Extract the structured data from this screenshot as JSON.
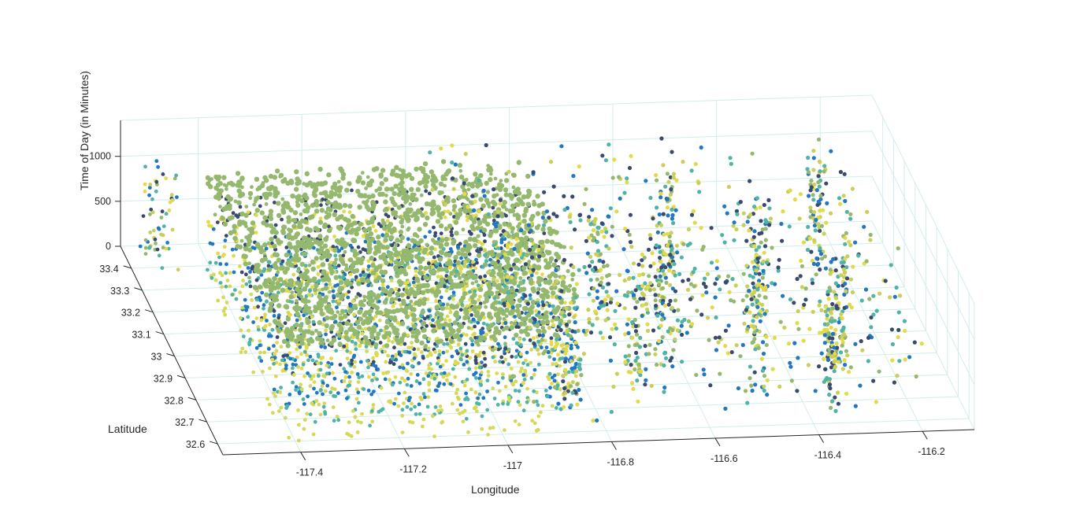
{
  "chart_data": {
    "type": "scatter",
    "dimensions": "3d",
    "xlabel": "Longitude",
    "ylabel": "Latitude",
    "zlabel": "Time of Day (in Minutes)",
    "xticks": [
      "-117.4",
      "-117.2",
      "-117",
      "-116.8",
      "-116.6",
      "-116.4",
      "-116.2"
    ],
    "yticks": [
      "32.6",
      "32.7",
      "32.8",
      "32.9",
      "33",
      "33.1",
      "33.2",
      "33.3",
      "33.4"
    ],
    "zticks": [
      "0",
      "500",
      "1000"
    ],
    "xlim": [
      -117.55,
      -116.1
    ],
    "ylim": [
      32.55,
      33.5
    ],
    "zlim": [
      0,
      1400
    ],
    "grid": true,
    "colors": {
      "band_colors": [
        "#d6d85a",
        "#4fb3a6",
        "#1f78c1",
        "#e3da4a",
        "#3a4a6e",
        "#95b86f"
      ],
      "point_colors": [
        "#2177c2",
        "#e3da4a",
        "#4fb3a6",
        "#95b86f",
        "#3a4a6e",
        "#c9cf5a"
      ],
      "grid_color": "#d3ecec",
      "axis_color": "#262626"
    }
  }
}
